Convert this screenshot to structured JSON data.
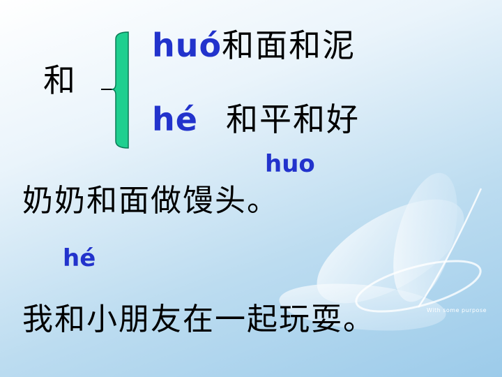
{
  "main_char": "和",
  "reading1": {
    "pinyin": "huó",
    "word": "和面和泥"
  },
  "reading2": {
    "pinyin": "hé",
    "word": "和平和好"
  },
  "sentence1": {
    "pinyin": "huo",
    "text": "奶奶和面做馒头。"
  },
  "sentence2": {
    "pinyin": "hé",
    "text": "我和小朋友在一起玩耍。"
  },
  "watermark": "With some purpose",
  "colors": {
    "pinyin": "#2233cc",
    "brace": "#1fcf8f"
  }
}
